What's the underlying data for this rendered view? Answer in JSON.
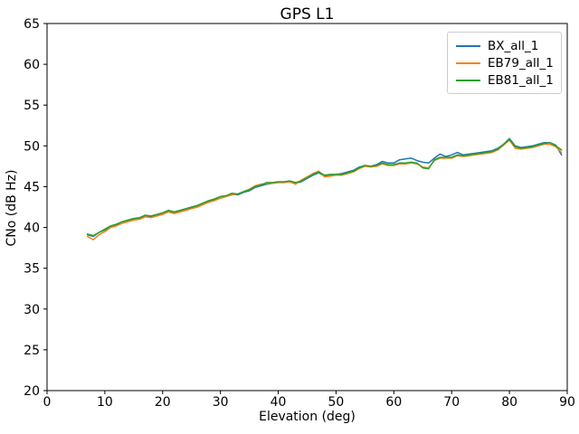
{
  "chart_data": {
    "type": "line",
    "title": "GPS L1",
    "xlabel": "Elevation (deg)",
    "ylabel": "CNo (dB Hz)",
    "xlim": [
      0,
      90
    ],
    "ylim": [
      20,
      65
    ],
    "xticks": [
      0,
      10,
      20,
      30,
      40,
      50,
      60,
      70,
      80,
      90
    ],
    "yticks": [
      20,
      25,
      30,
      35,
      40,
      45,
      50,
      55,
      60,
      65
    ],
    "grid": false,
    "legend_position": "upper right",
    "background": "#ffffff",
    "x": [
      7,
      8,
      9,
      10,
      11,
      12,
      13,
      14,
      15,
      16,
      17,
      18,
      19,
      20,
      21,
      22,
      23,
      24,
      25,
      26,
      27,
      28,
      29,
      30,
      31,
      32,
      33,
      34,
      35,
      36,
      37,
      38,
      39,
      40,
      41,
      42,
      43,
      44,
      45,
      46,
      47,
      48,
      49,
      50,
      51,
      52,
      53,
      54,
      55,
      56,
      57,
      58,
      59,
      60,
      61,
      62,
      63,
      64,
      65,
      66,
      67,
      68,
      69,
      70,
      71,
      72,
      73,
      74,
      75,
      76,
      77,
      78,
      79,
      80,
      81,
      82,
      83,
      84,
      85,
      86,
      87,
      88,
      89
    ],
    "series": [
      {
        "name": "BX_all_1",
        "color": "#1f77b4",
        "values": [
          39.1,
          38.9,
          39.4,
          39.7,
          40.1,
          40.3,
          40.7,
          40.8,
          41.0,
          41.1,
          41.4,
          41.3,
          41.5,
          41.7,
          42.0,
          41.8,
          42.0,
          42.2,
          42.4,
          42.6,
          42.9,
          43.2,
          43.4,
          43.6,
          43.8,
          44.1,
          44.0,
          44.3,
          44.5,
          44.9,
          45.1,
          45.3,
          45.4,
          45.5,
          45.5,
          45.6,
          45.4,
          45.6,
          46.0,
          46.4,
          46.7,
          46.3,
          46.4,
          46.5,
          46.6,
          46.8,
          47.0,
          47.4,
          47.6,
          47.5,
          47.7,
          48.1,
          47.9,
          47.9,
          48.3,
          48.4,
          48.5,
          48.2,
          48.0,
          47.9,
          48.5,
          49.0,
          48.7,
          48.9,
          49.2,
          48.9,
          49.0,
          49.1,
          49.2,
          49.3,
          49.4,
          49.7,
          50.2,
          50.9,
          50.0,
          49.8,
          49.9,
          50.0,
          50.2,
          50.4,
          50.4,
          50.1,
          48.9
        ]
      },
      {
        "name": "EB79_all_1",
        "color": "#ff7f0e",
        "values": [
          38.9,
          38.5,
          39.1,
          39.5,
          40.0,
          40.2,
          40.5,
          40.7,
          40.9,
          41.0,
          41.3,
          41.2,
          41.4,
          41.6,
          41.9,
          41.7,
          41.9,
          42.1,
          42.3,
          42.5,
          42.8,
          43.1,
          43.3,
          43.6,
          43.8,
          44.0,
          44.1,
          44.4,
          44.7,
          45.1,
          45.3,
          45.4,
          45.4,
          45.5,
          45.5,
          45.6,
          45.3,
          45.8,
          46.2,
          46.6,
          46.9,
          46.2,
          46.3,
          46.4,
          46.4,
          46.6,
          46.8,
          47.2,
          47.5,
          47.4,
          47.5,
          47.8,
          47.6,
          47.6,
          47.8,
          47.8,
          47.9,
          47.8,
          47.4,
          47.3,
          48.2,
          48.5,
          48.5,
          48.5,
          48.8,
          48.7,
          48.8,
          48.9,
          49.0,
          49.1,
          49.2,
          49.5,
          50.1,
          50.7,
          49.7,
          49.6,
          49.7,
          49.8,
          50.0,
          50.2,
          50.2,
          49.9,
          49.2
        ]
      },
      {
        "name": "EB81_all_1",
        "color": "#2ca02c",
        "values": [
          39.2,
          39.0,
          39.4,
          39.8,
          40.2,
          40.4,
          40.7,
          40.9,
          41.1,
          41.2,
          41.5,
          41.4,
          41.6,
          41.8,
          42.1,
          41.9,
          42.1,
          42.3,
          42.5,
          42.7,
          43.0,
          43.3,
          43.5,
          43.8,
          43.9,
          44.2,
          44.1,
          44.4,
          44.6,
          45.0,
          45.2,
          45.5,
          45.5,
          45.6,
          45.6,
          45.7,
          45.5,
          45.7,
          46.1,
          46.5,
          46.8,
          46.4,
          46.5,
          46.5,
          46.5,
          46.7,
          46.9,
          47.3,
          47.6,
          47.5,
          47.6,
          47.9,
          47.7,
          47.7,
          47.9,
          47.9,
          48.0,
          47.9,
          47.3,
          47.2,
          48.3,
          48.6,
          48.6,
          48.6,
          48.9,
          48.8,
          48.9,
          49.0,
          49.1,
          49.2,
          49.3,
          49.6,
          50.2,
          50.8,
          49.9,
          49.7,
          49.8,
          49.9,
          50.1,
          50.3,
          50.4,
          50.0,
          49.5
        ]
      }
    ]
  }
}
